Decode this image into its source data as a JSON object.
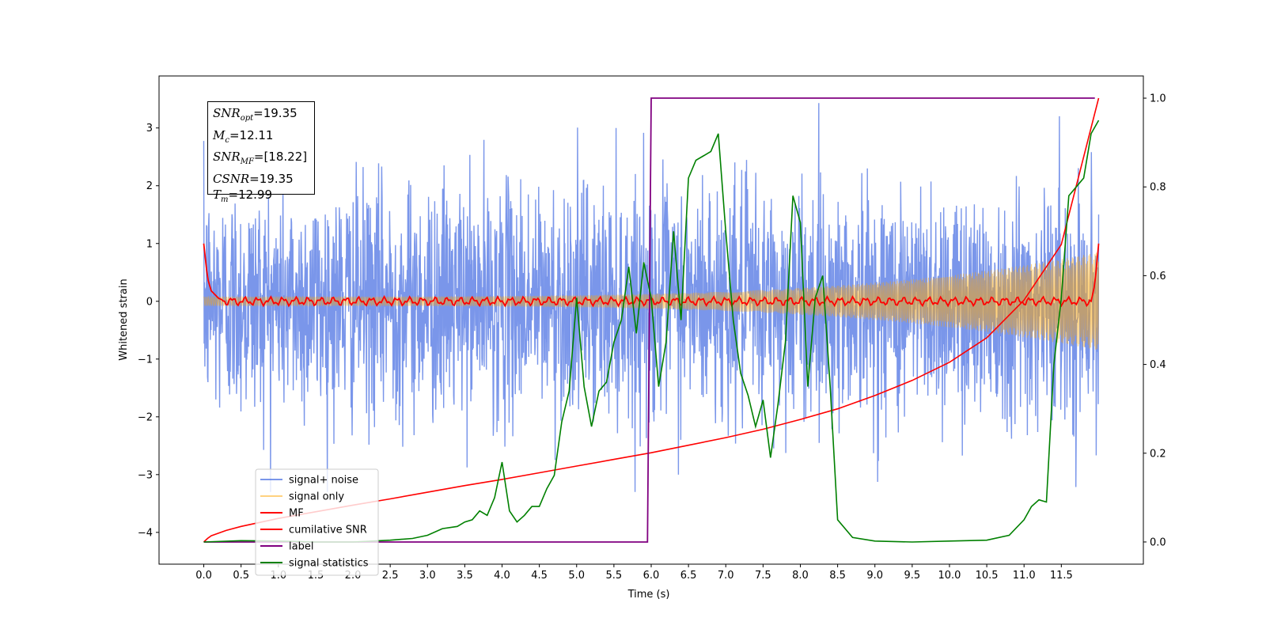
{
  "chart_data": {
    "type": "line",
    "xlabel": "Time (s)",
    "ylabel": "Whitened strain",
    "xlim": [
      -0.6,
      12.6
    ],
    "ylim": [
      -4.55,
      3.9
    ],
    "ylim_right": [
      -0.05,
      1.05
    ],
    "x_ticks": [
      "0.0",
      "0.5",
      "1.0",
      "1.5",
      "2.0",
      "2.5",
      "3.0",
      "3.5",
      "4.0",
      "4.5",
      "5.0",
      "5.5",
      "6.0",
      "6.5",
      "7.0",
      "7.5",
      "8.0",
      "8.5",
      "9.0",
      "9.5",
      "10.0",
      "10.5",
      "11.0",
      "11.5"
    ],
    "y_ticks_left": [
      "3",
      "2",
      "1",
      "0",
      "−1",
      "−2",
      "−3",
      "−4"
    ],
    "y_ticks_right": [
      "1.0",
      "0.8",
      "0.6",
      "0.4",
      "0.2",
      "0.0"
    ],
    "annotation": {
      "lines": [
        {
          "sym": "SNR",
          "sub": "opt",
          "val": "=19.35"
        },
        {
          "sym": "M",
          "sub": "c",
          "val": "=12.11"
        },
        {
          "sym": "SNR",
          "sub": "MF",
          "val": "=[18.22]"
        },
        {
          "sym": "CSNR",
          "sub": "",
          "val": "=19.35"
        },
        {
          "sym": "T",
          "sub": "m",
          "val": "=12.99"
        }
      ]
    },
    "legend": {
      "placement": "lower-left",
      "entries": [
        {
          "label": "signal+ noise",
          "color": "#4169e1"
        },
        {
          "label": "signal only",
          "color": "#ffa500"
        },
        {
          "label": "MF",
          "color": "#ff0000"
        },
        {
          "label": "cumilative SNR",
          "color": "#ff0000"
        },
        {
          "label": "label",
          "color": "#800080"
        },
        {
          "label": "signal statistics",
          "color": "#008000"
        }
      ]
    },
    "series": [
      {
        "name": "signal+ noise",
        "axis": "left",
        "kind": "gaussian-noise",
        "x_range": [
          0.0,
          12.0
        ],
        "sigma": 1.0,
        "color": "#4169e1",
        "alpha": 0.7
      },
      {
        "name": "signal only",
        "axis": "left",
        "kind": "chirp",
        "x_range": [
          0.0,
          12.0
        ],
        "amp_start": 0.08,
        "amp_end": 0.85,
        "color": "#ffa500",
        "alpha": 0.5
      },
      {
        "name": "MF",
        "axis": "left",
        "kind": "matched-filter",
        "x": [
          0.0,
          0.05,
          0.1,
          0.2,
          0.3,
          11.9,
          11.95,
          12.0
        ],
        "y": [
          1.0,
          0.4,
          0.18,
          0.05,
          0.0,
          0.0,
          0.3,
          1.0
        ],
        "color": "#ff0000"
      },
      {
        "name": "cumilative SNR",
        "axis": "right",
        "x": [
          0.0,
          0.05,
          0.1,
          0.3,
          0.5,
          1.0,
          1.5,
          2.0,
          2.5,
          3.0,
          3.5,
          4.0,
          4.5,
          5.0,
          5.5,
          6.0,
          6.5,
          7.0,
          7.5,
          8.0,
          8.5,
          9.0,
          9.5,
          10.0,
          10.5,
          11.0,
          11.5,
          12.0
        ],
        "y": [
          0.0,
          0.008,
          0.014,
          0.026,
          0.035,
          0.053,
          0.068,
          0.083,
          0.097,
          0.112,
          0.127,
          0.141,
          0.156,
          0.171,
          0.186,
          0.201,
          0.218,
          0.235,
          0.254,
          0.276,
          0.3,
          0.33,
          0.364,
          0.405,
          0.46,
          0.545,
          0.67,
          1.0
        ],
        "color": "#ff0000"
      },
      {
        "name": "label",
        "axis": "right",
        "x": [
          0.0,
          5.95,
          6.0,
          11.95
        ],
        "y": [
          0.0,
          0.0,
          1.0,
          1.0
        ],
        "color": "#800080"
      },
      {
        "name": "signal statistics",
        "axis": "right",
        "x": [
          0.0,
          0.5,
          1.0,
          1.5,
          2.0,
          2.5,
          2.8,
          3.0,
          3.2,
          3.4,
          3.5,
          3.6,
          3.7,
          3.8,
          3.9,
          4.0,
          4.1,
          4.2,
          4.3,
          4.4,
          4.5,
          4.6,
          4.7,
          4.8,
          4.9,
          5.0,
          5.1,
          5.2,
          5.3,
          5.4,
          5.5,
          5.6,
          5.7,
          5.8,
          5.9,
          6.0,
          6.1,
          6.2,
          6.3,
          6.4,
          6.5,
          6.6,
          6.7,
          6.8,
          6.9,
          7.0,
          7.1,
          7.2,
          7.3,
          7.4,
          7.5,
          7.6,
          7.7,
          7.8,
          7.9,
          8.0,
          8.1,
          8.2,
          8.3,
          8.4,
          8.5,
          8.7,
          9.0,
          9.5,
          10.0,
          10.5,
          10.8,
          11.0,
          11.1,
          11.2,
          11.3,
          11.4,
          11.5,
          11.6,
          11.7,
          11.8,
          11.9,
          12.0
        ],
        "y": [
          0.0,
          0.003,
          0.002,
          0.0,
          0.0,
          0.004,
          0.008,
          0.015,
          0.03,
          0.035,
          0.045,
          0.05,
          0.07,
          0.06,
          0.1,
          0.18,
          0.07,
          0.045,
          0.06,
          0.08,
          0.08,
          0.12,
          0.15,
          0.27,
          0.34,
          0.55,
          0.35,
          0.26,
          0.34,
          0.36,
          0.45,
          0.5,
          0.62,
          0.47,
          0.63,
          0.55,
          0.35,
          0.45,
          0.7,
          0.5,
          0.82,
          0.86,
          0.87,
          0.88,
          0.92,
          0.7,
          0.5,
          0.38,
          0.33,
          0.26,
          0.32,
          0.19,
          0.31,
          0.45,
          0.78,
          0.72,
          0.35,
          0.55,
          0.6,
          0.35,
          0.05,
          0.01,
          0.002,
          0.0,
          0.002,
          0.004,
          0.015,
          0.05,
          0.08,
          0.095,
          0.09,
          0.4,
          0.55,
          0.78,
          0.8,
          0.82,
          0.92,
          0.95
        ],
        "color": "#008000"
      }
    ]
  }
}
